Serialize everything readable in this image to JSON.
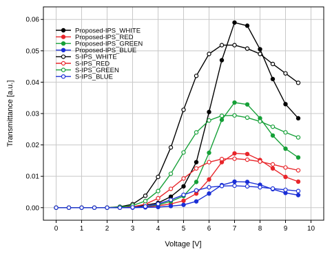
{
  "chart_data": {
    "type": "line",
    "title": "",
    "xlabel": "Voltage [V]",
    "ylabel": "Transmittance [a.u.]",
    "xlim": [
      -0.5,
      10.5
    ],
    "ylim": [
      -0.004,
      0.064
    ],
    "x_ticks": [
      "0",
      "1",
      "2",
      "3",
      "4",
      "5",
      "6",
      "7",
      "8",
      "9",
      "10"
    ],
    "y_ticks": [
      "0.00",
      "0.01",
      "0.02",
      "0.03",
      "0.04",
      "0.05",
      "0.06"
    ],
    "grid": true,
    "legend_position": "top-left",
    "x": [
      0,
      0.5,
      1,
      1.5,
      2,
      2.5,
      3,
      3.5,
      4,
      4.5,
      5,
      5.5,
      6,
      6.5,
      7,
      7.5,
      8,
      8.5,
      9,
      9.5
    ],
    "series": [
      {
        "name": "Proposed-IPS_WHITE",
        "color": "#000000",
        "marker": "filled",
        "values": [
          0,
          0,
          0,
          0,
          0,
          0.0001,
          0.0003,
          0.0008,
          0.0015,
          0.0035,
          0.0068,
          0.0145,
          0.0305,
          0.047,
          0.059,
          0.058,
          0.0505,
          0.041,
          0.033,
          0.0285
        ]
      },
      {
        "name": "Proposed-IPS_RED",
        "color": "#e8262b",
        "marker": "filled",
        "values": [
          0,
          0,
          0,
          0,
          0,
          0,
          0.0001,
          0.0002,
          0.0006,
          0.0012,
          0.0022,
          0.0045,
          0.009,
          0.0145,
          0.0173,
          0.0171,
          0.0152,
          0.0125,
          0.0098,
          0.0083
        ]
      },
      {
        "name": "Proposed-IPS_GREEN",
        "color": "#16a038",
        "marker": "filled",
        "values": [
          0,
          0,
          0,
          0,
          0,
          0,
          0.0002,
          0.0004,
          0.0009,
          0.002,
          0.0037,
          0.0082,
          0.0175,
          0.028,
          0.0335,
          0.0329,
          0.0285,
          0.023,
          0.0188,
          0.016
        ]
      },
      {
        "name": "Proposed-IPS_BLUE",
        "color": "#1b2fd6",
        "marker": "filled",
        "values": [
          0,
          0,
          0,
          0,
          0,
          0,
          0,
          0.0001,
          0.0002,
          0.0005,
          0.0009,
          0.002,
          0.0045,
          0.0072,
          0.0083,
          0.0082,
          0.0073,
          0.0059,
          0.0047,
          0.004
        ]
      },
      {
        "name": "S-IPS_WHITE",
        "color": "#000000",
        "marker": "open",
        "values": [
          0,
          0,
          0,
          0,
          0,
          0.0003,
          0.0011,
          0.0038,
          0.0098,
          0.0192,
          0.0312,
          0.042,
          0.049,
          0.0518,
          0.0518,
          0.0507,
          0.049,
          0.0458,
          0.0428,
          0.0398
        ]
      },
      {
        "name": "S-IPS_RED",
        "color": "#e8262b",
        "marker": "open",
        "values": [
          0,
          0,
          0,
          0,
          0,
          0,
          0.0003,
          0.0011,
          0.003,
          0.006,
          0.0093,
          0.0125,
          0.0145,
          0.0155,
          0.0156,
          0.0153,
          0.0147,
          0.0138,
          0.0128,
          0.0119
        ]
      },
      {
        "name": "S-IPS_GREEN",
        "color": "#16a038",
        "marker": "open",
        "values": [
          0,
          0,
          0,
          0,
          0,
          0.0002,
          0.0007,
          0.0021,
          0.0053,
          0.0108,
          0.0176,
          0.024,
          0.0278,
          0.0293,
          0.0294,
          0.0287,
          0.0275,
          0.0258,
          0.024,
          0.0224
        ]
      },
      {
        "name": "S-IPS_BLUE",
        "color": "#1b2fd6",
        "marker": "open",
        "values": [
          0,
          0,
          0,
          0,
          0,
          0,
          0.0001,
          0.0004,
          0.0012,
          0.0025,
          0.0041,
          0.0055,
          0.0065,
          0.0069,
          0.007,
          0.0068,
          0.0065,
          0.0061,
          0.0057,
          0.0053
        ]
      }
    ]
  }
}
